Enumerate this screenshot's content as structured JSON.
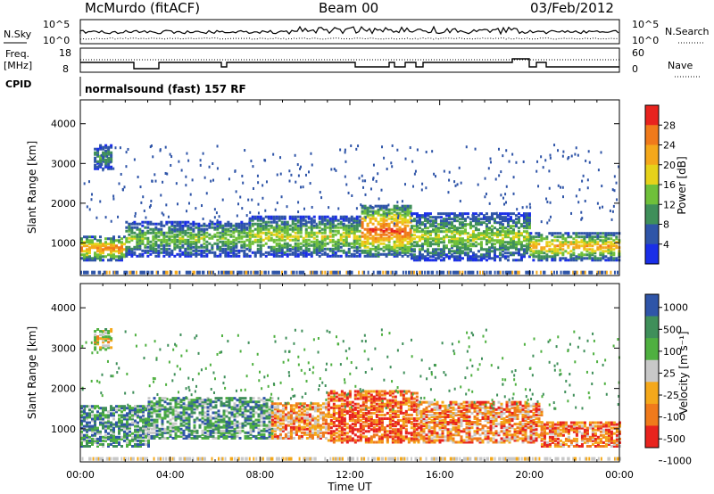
{
  "header": {
    "station": "McMurdo (fitACF)",
    "beam": "Beam 00",
    "date": "03/Feb/2012"
  },
  "noise_panel": {
    "left_label": "N.Sky",
    "right_label": "N.Search",
    "left_ticks": [
      "10^5",
      "10^0"
    ],
    "right_ticks": [
      "10^5",
      "10^0"
    ]
  },
  "freq_panel": {
    "left_label_1": "Freq.",
    "left_label_2": "[MHz]",
    "right_label": "Nave",
    "left_ticks": [
      "18",
      "8"
    ],
    "right_ticks": [
      "60",
      "0"
    ]
  },
  "cpid": {
    "label": "CPID",
    "text": "normalsound (fast) 157 RF"
  },
  "chart_data": [
    {
      "type": "heatmap",
      "panel": "power",
      "ylabel": "Slant Range [km]",
      "yticks": [
        1000,
        2000,
        3000,
        4000
      ],
      "ylim": [
        180,
        4600
      ],
      "xlim": [
        0,
        24
      ],
      "colorbar_label": "Power [dB]",
      "colorbar_ticks": [
        "28",
        "24",
        "20",
        "16",
        "12",
        "8",
        "4"
      ],
      "colorbar_colors": [
        "#e8231e",
        "#f07a1b",
        "#f4a81b",
        "#e6d21a",
        "#6fc03a",
        "#3f8f5a",
        "#2f55a8",
        "#1a2ee8"
      ],
      "bands": [
        {
          "t0": 0.0,
          "t1": 2.0,
          "r0": 600,
          "r1": 1200,
          "level": 0.8
        },
        {
          "t0": 2.0,
          "t1": 7.5,
          "r0": 700,
          "r1": 1600,
          "level": 0.45
        },
        {
          "t0": 7.5,
          "t1": 12.5,
          "r0": 700,
          "r1": 1700,
          "level": 0.55
        },
        {
          "t0": 12.5,
          "t1": 14.7,
          "r0": 700,
          "r1": 2000,
          "level": 0.9
        },
        {
          "t0": 14.7,
          "t1": 20.0,
          "r0": 600,
          "r1": 1800,
          "level": 0.5
        },
        {
          "t0": 20.0,
          "t1": 24.0,
          "r0": 600,
          "r1": 1300,
          "level": 0.7
        },
        {
          "t0": 0.6,
          "t1": 1.4,
          "r0": 2900,
          "r1": 3500,
          "level": 0.35
        }
      ]
    },
    {
      "type": "heatmap",
      "panel": "velocity",
      "ylabel": "Slant Range [km]",
      "yticks": [
        1000,
        2000,
        3000,
        4000
      ],
      "ylim": [
        180,
        4600
      ],
      "xlim": [
        0,
        24
      ],
      "xlabel": "Time UT",
      "xticks": [
        "00:00",
        "04:00",
        "08:00",
        "12:00",
        "16:00",
        "20:00",
        "00:00"
      ],
      "colorbar_label": "Velocity [m s⁻¹]",
      "colorbar_ticks": [
        "1000",
        "500",
        "100",
        "25",
        "-25",
        "-100",
        "-500",
        "-1000"
      ],
      "colorbar_colors": [
        "#2f55a8",
        "#3f8f5a",
        "#4fb040",
        "#c8c8c8",
        "#f4a81b",
        "#f07a1b",
        "#e8231e"
      ],
      "bands": [
        {
          "t0": 0.0,
          "t1": 3.0,
          "r0": 600,
          "r1": 1600,
          "level": 0.25
        },
        {
          "t0": 3.0,
          "t1": 8.5,
          "r0": 800,
          "r1": 1800,
          "level": 0.28
        },
        {
          "t0": 8.5,
          "t1": 11.0,
          "r0": 800,
          "r1": 1700,
          "level": 0.7
        },
        {
          "t0": 11.0,
          "t1": 15.0,
          "r0": 700,
          "r1": 2000,
          "level": 0.85
        },
        {
          "t0": 15.0,
          "t1": 20.5,
          "r0": 700,
          "r1": 1700,
          "level": 0.72
        },
        {
          "t0": 20.5,
          "t1": 24.0,
          "r0": 600,
          "r1": 1200,
          "level": 0.75
        },
        {
          "t0": 0.6,
          "t1": 1.4,
          "r0": 3000,
          "r1": 3500,
          "level": 0.5
        }
      ]
    }
  ]
}
